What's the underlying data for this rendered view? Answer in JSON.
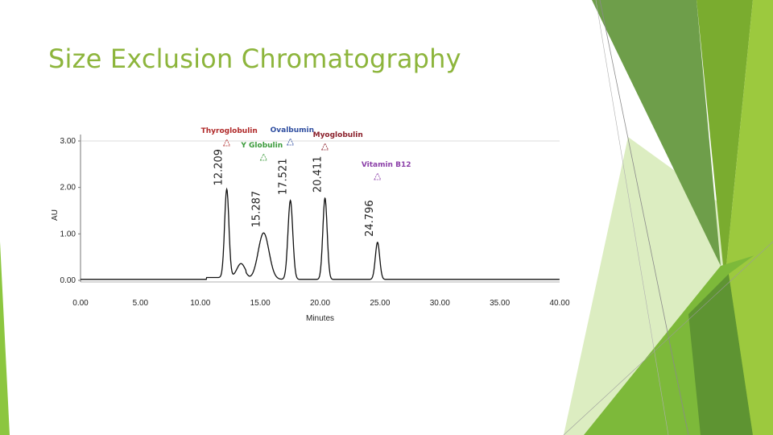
{
  "slide": {
    "title": "Size Exclusion Chromatography"
  },
  "colors": {
    "title": "#8db53c",
    "accent_dark": "#5e9a3a",
    "accent_mid": "#79b52f",
    "accent_light": "#9cc93e",
    "accent_pale": "#d8ebb5",
    "trace": "#111111"
  },
  "chart_data": {
    "type": "line",
    "title": "",
    "xlabel": "Minutes",
    "ylabel": "AU",
    "xlim": [
      0,
      40
    ],
    "ylim": [
      0,
      3
    ],
    "x_ticks": [
      "0.00",
      "5.00",
      "10.00",
      "15.00",
      "20.00",
      "25.00",
      "30.00",
      "35.00",
      "40.00"
    ],
    "y_ticks": [
      "0.00",
      "1.00",
      "2.00",
      "3.00"
    ],
    "grid": false,
    "peaks": [
      {
        "time": 12.209,
        "label": "12.209",
        "height": 1.9,
        "width": 0.18,
        "compound": "Thyroglobulin",
        "color": "#b02a2a"
      },
      {
        "time": 13.4,
        "label": "",
        "height": 0.3,
        "width": 0.35,
        "compound": "",
        "color": ""
      },
      {
        "time": 15.287,
        "label": "15.287",
        "height": 1.0,
        "width": 0.45,
        "compound": "Y Globulin",
        "color": "#3a9a3a"
      },
      {
        "time": 17.521,
        "label": "17.521",
        "height": 1.7,
        "width": 0.2,
        "compound": "Ovalbumin",
        "color": "#2f4ea0"
      },
      {
        "time": 20.411,
        "label": "20.411",
        "height": 1.75,
        "width": 0.18,
        "compound": "Myoglobulin",
        "color": "#8a1f2a"
      },
      {
        "time": 24.796,
        "label": "24.796",
        "height": 0.8,
        "width": 0.18,
        "compound": "Vitamin B12",
        "color": "#8b3fa8"
      }
    ]
  }
}
